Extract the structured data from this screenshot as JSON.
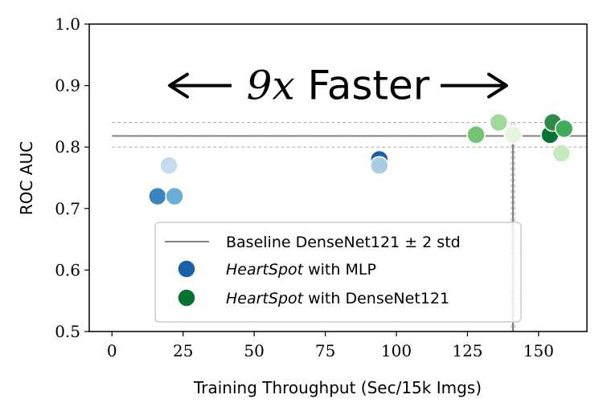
{
  "chart_data": {
    "type": "scatter",
    "xlabel": "Training Throughput (Sec/15k Imgs)",
    "ylabel": "ROC AUC",
    "xlim": [
      -8,
      167
    ],
    "ylim": [
      0.5,
      1.0
    ],
    "x_ticks": [
      0,
      25,
      50,
      75,
      100,
      125,
      150
    ],
    "y_ticks": [
      0.5,
      0.6,
      0.7,
      0.8,
      0.9,
      1.0
    ],
    "x_tick_labels": [
      "0",
      "25",
      "50",
      "75",
      "100",
      "125",
      "150"
    ],
    "y_tick_labels": [
      "0.5",
      "0.6",
      "0.7",
      "0.8",
      "0.9",
      "1.0"
    ],
    "grid": false,
    "legend_position": "lower-right",
    "baseline": {
      "label_prefix": "Baseline DenseNet121 ",
      "label_pm": "±",
      "label_suffix": " 2 std",
      "x": 141,
      "y_mean": 0.818,
      "y_upper": 0.84,
      "y_lower": 0.8,
      "color": "#808080"
    },
    "series": [
      {
        "name_italic": "HeartSpot",
        "name_rest": " with MLP",
        "legend_color": "#1a5fa8",
        "points": [
          {
            "x": 16,
            "y": 0.72,
            "color": "#3a84c0"
          },
          {
            "x": 22,
            "y": 0.72,
            "color": "#6aaed6"
          },
          {
            "x": 20,
            "y": 0.77,
            "color": "#c6dbef"
          },
          {
            "x": 94,
            "y": 0.78,
            "color": "#1a5fa8"
          },
          {
            "x": 94,
            "y": 0.77,
            "color": "#a9cce3"
          }
        ]
      },
      {
        "name_italic": "HeartSpot",
        "name_rest": " with DenseNet121",
        "legend_color": "#077332",
        "points": [
          {
            "x": 128,
            "y": 0.82,
            "color": "#74c476"
          },
          {
            "x": 136,
            "y": 0.84,
            "color": "#a1d99b"
          },
          {
            "x": 141,
            "y": 0.82,
            "color": "#e5f5e0"
          },
          {
            "x": 154,
            "y": 0.82,
            "color": "#077332"
          },
          {
            "x": 155,
            "y": 0.84,
            "color": "#2e8b4a"
          },
          {
            "x": 159,
            "y": 0.83,
            "color": "#41ab5d"
          },
          {
            "x": 158,
            "y": 0.79,
            "color": "#c7e9c0"
          }
        ]
      }
    ],
    "annotation": {
      "number": "9",
      "variable": "x",
      "word": " Faster",
      "arrow_from_x": 18,
      "arrow_to_x": 141,
      "y": 0.9
    }
  }
}
